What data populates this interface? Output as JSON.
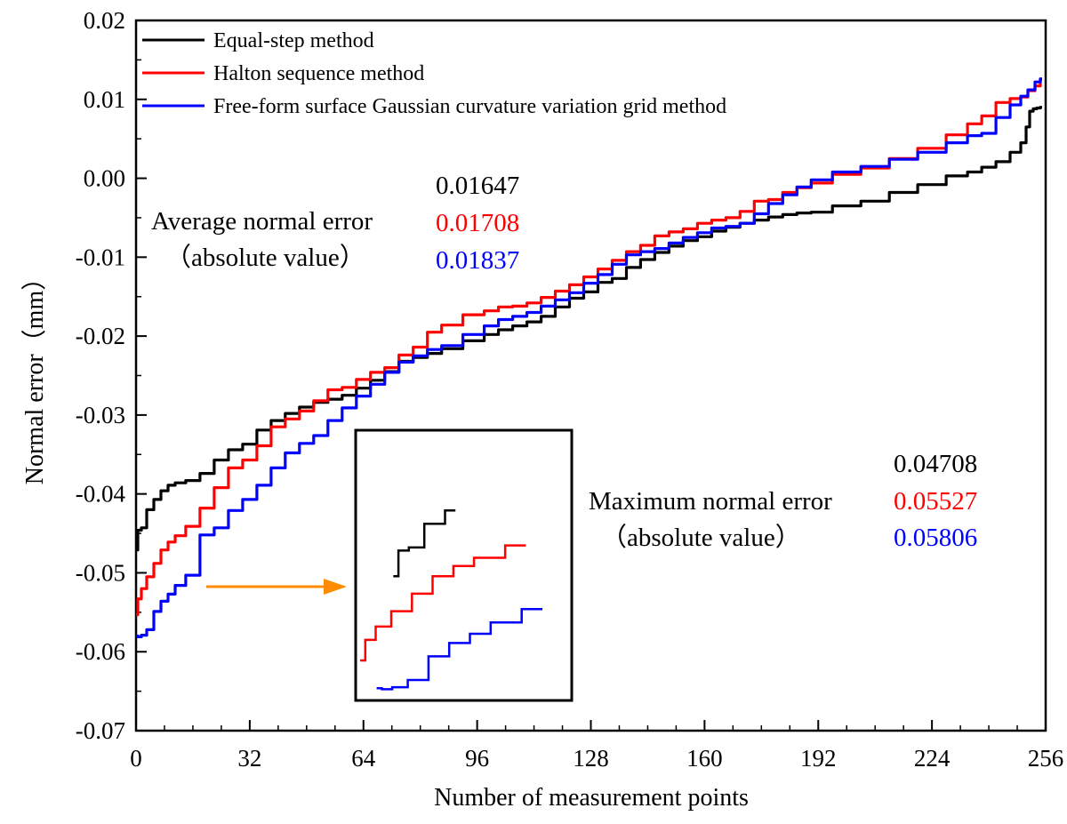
{
  "chart_data": {
    "type": "line",
    "xlabel": "Number of measurement points",
    "ylabel": "Normal error（mm）",
    "xlim": [
      0,
      256
    ],
    "ylim": [
      -0.07,
      0.02
    ],
    "xticks": [
      "0",
      "32",
      "64",
      "96",
      "128",
      "160",
      "192",
      "224",
      "256"
    ],
    "yticks": [
      "0.02",
      "0.01",
      "0.00",
      "-0.01",
      "-0.02",
      "-0.03",
      "-0.04",
      "-0.05",
      "-0.06",
      "-0.07"
    ],
    "series": [
      {
        "name": "Equal-step method",
        "color": "#000000",
        "x": [
          0,
          1,
          2,
          4,
          6,
          8,
          10,
          12,
          16,
          20,
          24,
          28,
          32,
          36,
          40,
          44,
          48,
          52,
          56,
          60,
          64,
          68,
          72,
          76,
          80,
          84,
          88,
          96,
          100,
          104,
          108,
          112,
          116,
          120,
          124,
          128,
          132,
          136,
          140,
          144,
          148,
          152,
          156,
          160,
          164,
          168,
          172,
          176,
          180,
          184,
          188,
          192,
          200,
          208,
          216,
          224,
          232,
          236,
          240,
          244,
          248,
          250,
          251,
          252,
          253,
          254,
          255
        ],
        "values": [
          -0.0471,
          -0.0446,
          -0.0443,
          -0.042,
          -0.0407,
          -0.0396,
          -0.0389,
          -0.0386,
          -0.0383,
          -0.0374,
          -0.0357,
          -0.0344,
          -0.0337,
          -0.0319,
          -0.0307,
          -0.0298,
          -0.029,
          -0.0284,
          -0.028,
          -0.0275,
          -0.0266,
          -0.0256,
          -0.0245,
          -0.0232,
          -0.0227,
          -0.0222,
          -0.0216,
          -0.0206,
          -0.0198,
          -0.0192,
          -0.0187,
          -0.0182,
          -0.0175,
          -0.0163,
          -0.0152,
          -0.0144,
          -0.0132,
          -0.0127,
          -0.0113,
          -0.0103,
          -0.0094,
          -0.0086,
          -0.0079,
          -0.0074,
          -0.0067,
          -0.0062,
          -0.0057,
          -0.0053,
          -0.0049,
          -0.0046,
          -0.0044,
          -0.0043,
          -0.0035,
          -0.0029,
          -0.0018,
          -0.0008,
          0.0003,
          0.0008,
          0.0014,
          0.0021,
          0.0033,
          0.0045,
          0.0065,
          0.0085,
          0.0088,
          0.0089,
          0.009
        ]
      },
      {
        "name": "Halton sequence method",
        "color": "#ff0000",
        "x": [
          0,
          1,
          2,
          4,
          6,
          8,
          10,
          12,
          16,
          20,
          24,
          28,
          32,
          36,
          40,
          44,
          48,
          52,
          56,
          60,
          64,
          68,
          72,
          76,
          80,
          84,
          88,
          96,
          100,
          104,
          108,
          112,
          116,
          120,
          124,
          128,
          132,
          136,
          140,
          144,
          148,
          152,
          156,
          160,
          164,
          168,
          172,
          176,
          180,
          184,
          188,
          192,
          200,
          208,
          216,
          224,
          232,
          236,
          240,
          244,
          248,
          250,
          252,
          254,
          255
        ],
        "values": [
          -0.0553,
          -0.0533,
          -0.052,
          -0.0505,
          -0.0488,
          -0.0471,
          -0.0461,
          -0.0453,
          -0.0441,
          -0.0418,
          -0.0392,
          -0.0367,
          -0.0357,
          -0.0339,
          -0.0315,
          -0.0305,
          -0.0295,
          -0.0282,
          -0.0268,
          -0.0265,
          -0.0255,
          -0.0246,
          -0.024,
          -0.0224,
          -0.0214,
          -0.0195,
          -0.0186,
          -0.0173,
          -0.0168,
          -0.0163,
          -0.0162,
          -0.0158,
          -0.0151,
          -0.0143,
          -0.0135,
          -0.0125,
          -0.0115,
          -0.0104,
          -0.0093,
          -0.0085,
          -0.0073,
          -0.0068,
          -0.0064,
          -0.0057,
          -0.0053,
          -0.005,
          -0.0042,
          -0.0029,
          -0.0027,
          -0.0018,
          -0.0012,
          -0.0006,
          0.0005,
          0.0013,
          0.0025,
          0.0038,
          0.0055,
          0.0069,
          0.0079,
          0.0096,
          0.0101,
          0.0103,
          0.0111,
          0.0117,
          0.0125
        ]
      },
      {
        "name": "Free-form surface Gaussian curvature variation grid method",
        "color": "#0000ff",
        "x": [
          0,
          1,
          2,
          4,
          6,
          8,
          10,
          12,
          16,
          20,
          24,
          28,
          32,
          36,
          40,
          44,
          48,
          52,
          56,
          60,
          64,
          68,
          72,
          76,
          80,
          84,
          88,
          96,
          100,
          104,
          108,
          112,
          116,
          120,
          124,
          128,
          132,
          136,
          140,
          144,
          148,
          152,
          156,
          160,
          164,
          168,
          172,
          176,
          180,
          184,
          188,
          192,
          200,
          208,
          216,
          224,
          232,
          236,
          240,
          244,
          248,
          250,
          252,
          254,
          255
        ],
        "values": [
          -0.058,
          -0.0581,
          -0.0579,
          -0.0572,
          -0.0549,
          -0.0536,
          -0.0527,
          -0.0516,
          -0.0503,
          -0.0452,
          -0.0443,
          -0.0421,
          -0.0407,
          -0.0389,
          -0.0367,
          -0.0348,
          -0.0336,
          -0.0326,
          -0.0307,
          -0.0291,
          -0.0276,
          -0.0261,
          -0.0246,
          -0.0233,
          -0.0225,
          -0.0217,
          -0.0212,
          -0.0198,
          -0.0187,
          -0.0179,
          -0.0175,
          -0.017,
          -0.0162,
          -0.0154,
          -0.0145,
          -0.0133,
          -0.0122,
          -0.0109,
          -0.0097,
          -0.0093,
          -0.0089,
          -0.0082,
          -0.0075,
          -0.0069,
          -0.0063,
          -0.0061,
          -0.0057,
          -0.0045,
          -0.0032,
          -0.0021,
          -0.0011,
          -0.0002,
          0.0008,
          0.0015,
          0.0024,
          0.0033,
          0.0045,
          0.0054,
          0.0057,
          0.0077,
          0.0093,
          0.0104,
          0.0112,
          0.0122,
          0.0126
        ]
      }
    ],
    "inset": {
      "description_free": true,
      "shows": "magnified start of curves (first points)"
    },
    "annotations": {
      "average": {
        "label_line1": "Average normal error",
        "label_line2": "（absolute value）",
        "values": [
          "0.01647",
          "0.01708",
          "0.01837"
        ]
      },
      "maximum": {
        "label_line1": "Maximum normal error",
        "label_line2": "（absolute value）",
        "values": [
          "0.04708",
          "0.05527",
          "0.05806"
        ]
      }
    },
    "arrow_color": "#ff8c00"
  }
}
